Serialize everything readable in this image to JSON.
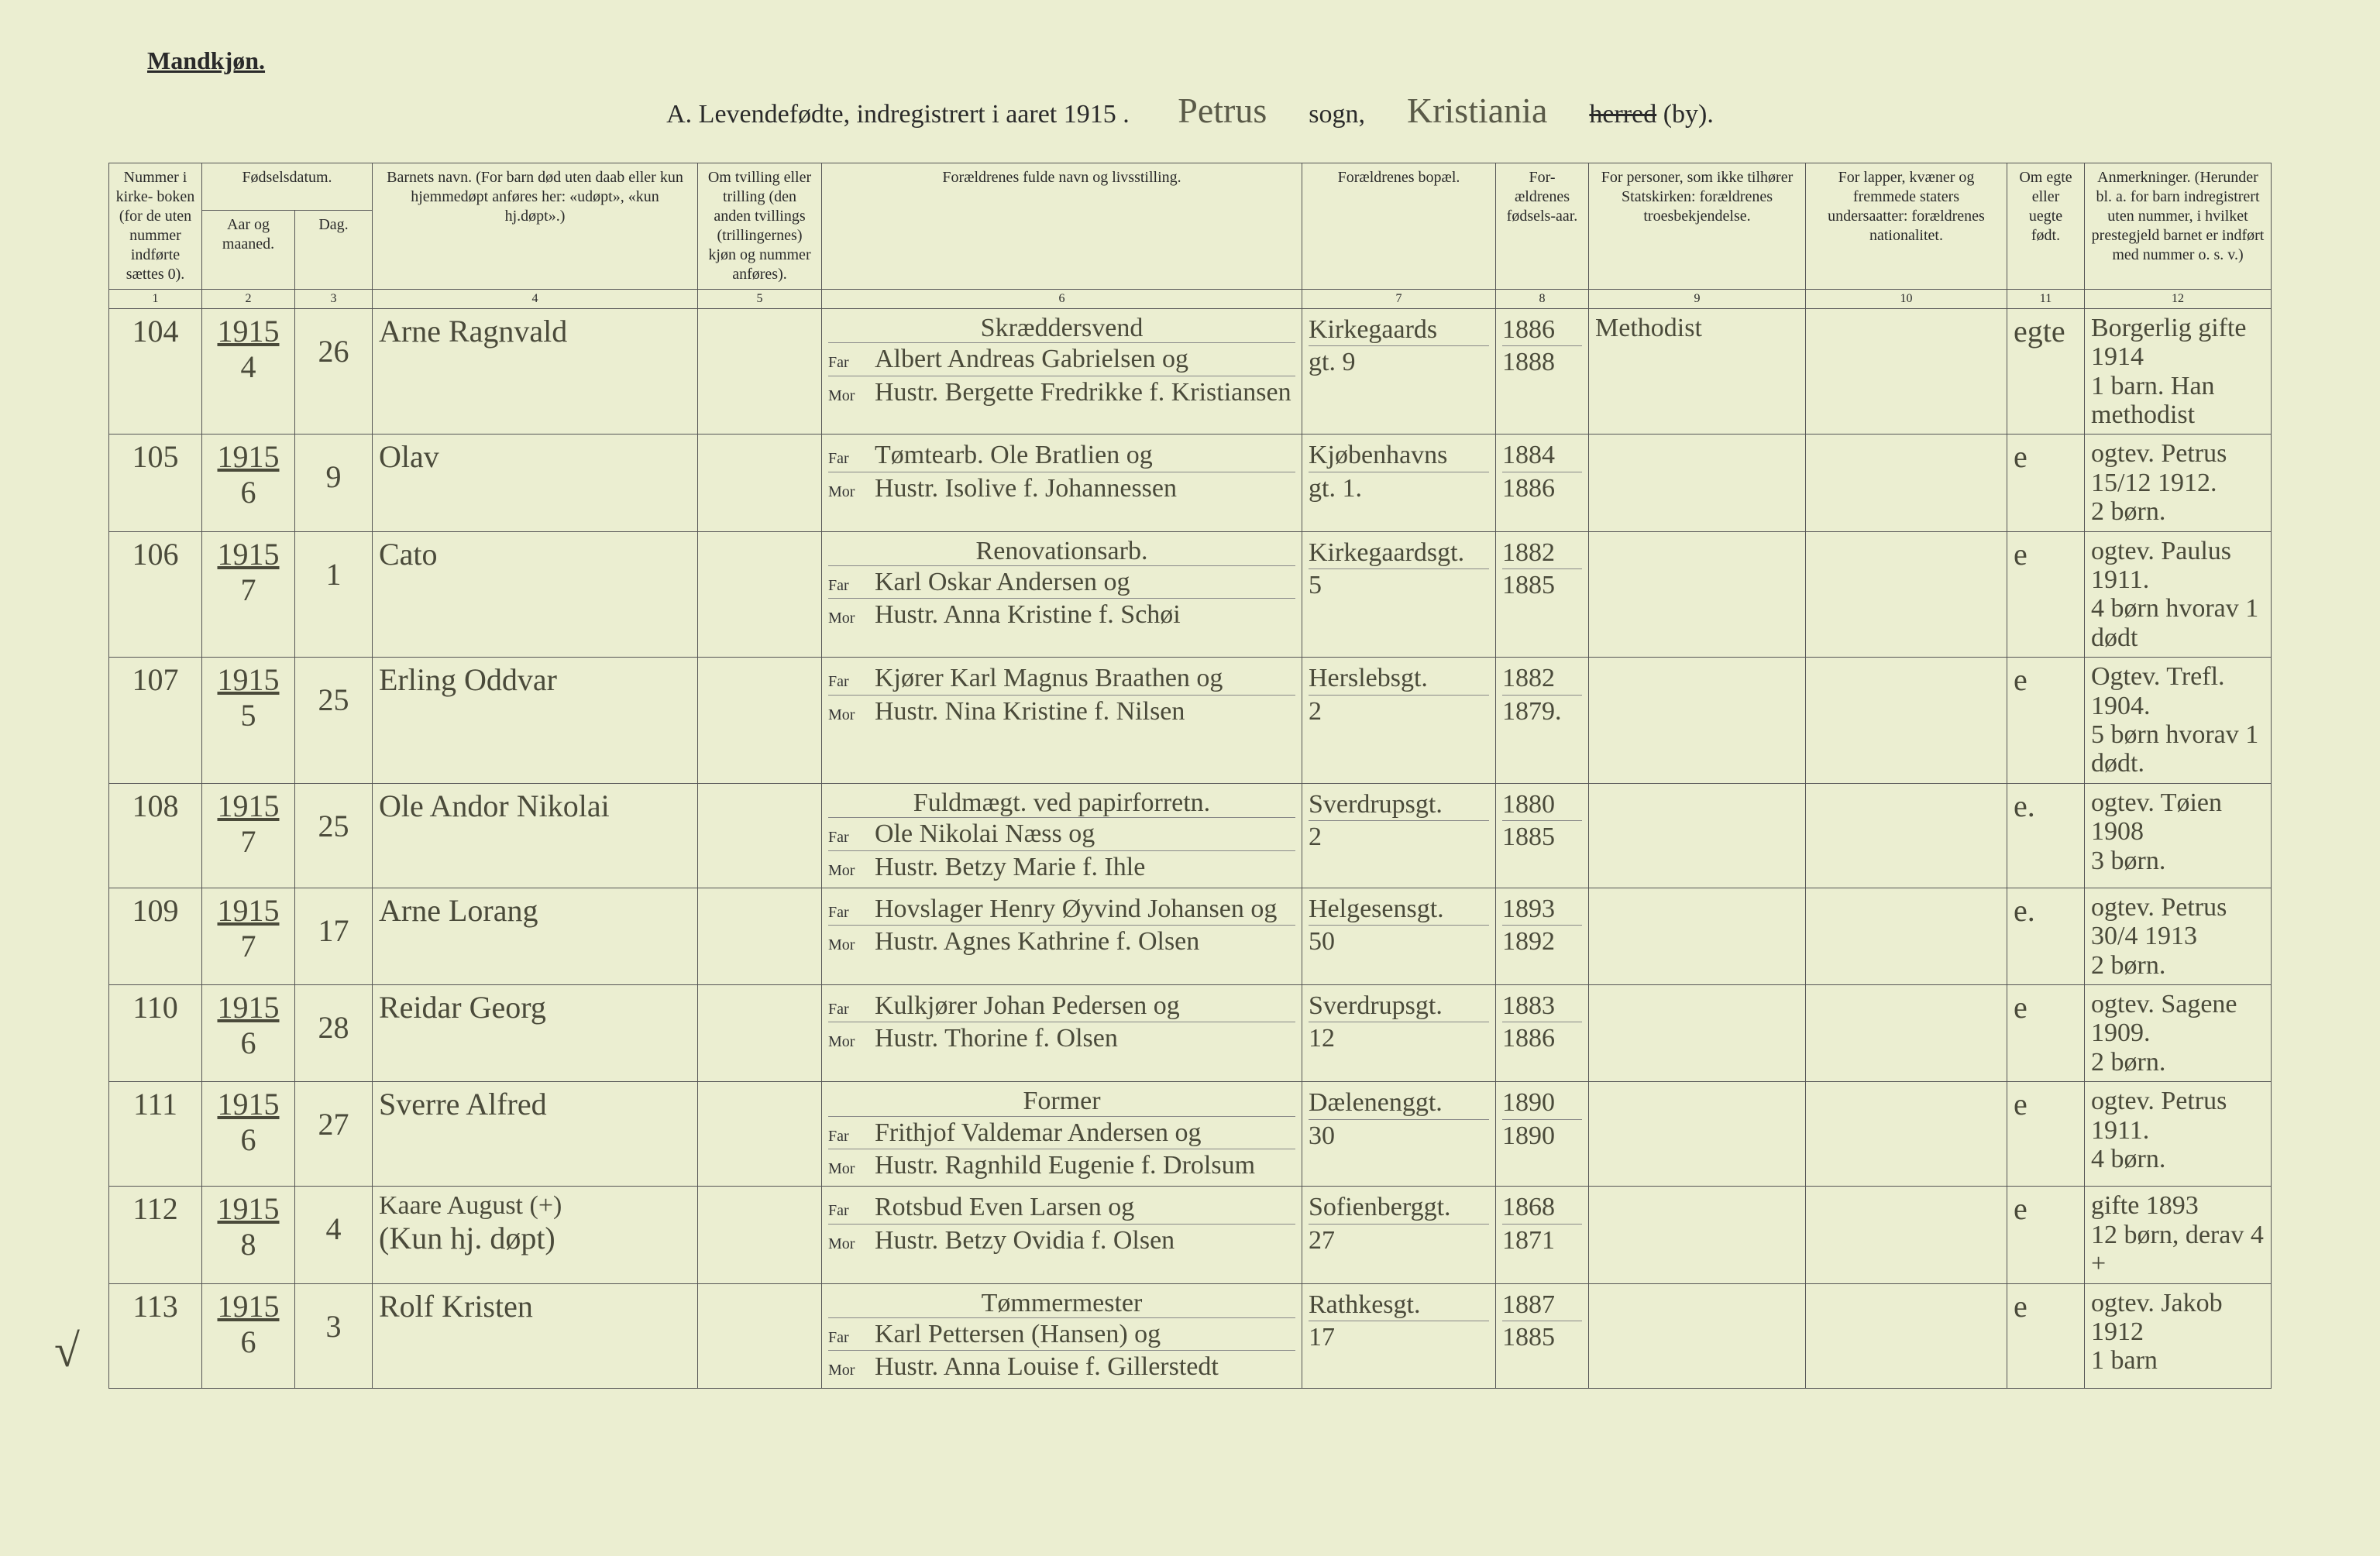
{
  "page": {
    "sex_label": "Mandkjøn.",
    "title_prefix": "A.  Levendefødte, indregistrert i aaret 191",
    "title_year_digit": "5",
    "title_dot": " .",
    "parish_label_before": "",
    "parish_handwritten": "Petrus",
    "sogn_label": "sogn,",
    "district_handwritten": "Kristiania",
    "herred_struck": "herred",
    "by_label": "(by)."
  },
  "headers": {
    "col1": "Nummer i kirke-\nboken (for de uten nummer indførte sættes 0).",
    "col23_top": "Fødselsdatum.",
    "col2": "Aar og maaned.",
    "col3": "Dag.",
    "col4": "Barnets navn.\n(For barn død uten daab eller kun hjemmedøpt anføres her: «udøpt», «kun hj.døpt».)",
    "col5": "Om tvilling eller trilling (den anden tvillings (trillingernes) kjøn og nummer anføres).",
    "col6": "Forældrenes fulde navn og livsstilling.",
    "col7": "Forældrenes bopæl.",
    "col8": "For-ældrenes fødsels-aar.",
    "col9": "For personer, som ikke tilhører Statskirken: forældrenes troesbekjendelse.",
    "col10": "For lapper, kvæner og fremmede staters undersaatter: forældrenes nationalitet.",
    "col11": "Om egte eller uegte født.",
    "col12": "Anmerkninger.\n(Herunder bl. a. for barn indregistrert uten nummer, i hvilket prestegjeld barnet er indført med nummer o. s. v.)",
    "far_label": "Far",
    "mor_label": "Mor",
    "colnums": [
      "1",
      "2",
      "3",
      "4",
      "5",
      "6",
      "7",
      "8",
      "9",
      "10",
      "11",
      "12"
    ]
  },
  "rows": [
    {
      "num": "104",
      "year": "1915",
      "month": "4",
      "day": "26",
      "child": "Arne Ragnvald",
      "twin": "",
      "far_occ": "Skræddersvend",
      "far": "Albert Andreas Gabrielsen og",
      "mor": "Hustr. Bergette Fredrikke f. Kristiansen",
      "addr_far": "Kirkegaards",
      "addr_mor": "gt. 9",
      "pyear_far": "1886",
      "pyear_mor": "1888",
      "church": "Methodist",
      "nat": "",
      "legit": "egte",
      "notes_top": "Borgerlig gifte 1914",
      "notes_bot": "1 barn.  Han methodist"
    },
    {
      "num": "105",
      "year": "1915",
      "month": "6",
      "day": "9",
      "child": "Olav",
      "twin": "",
      "far_occ": "",
      "far": "Tømtearb. Ole Bratlien  og",
      "mor": "Hustr. Isolive f. Johannessen",
      "addr_far": "Kjøbenhavns",
      "addr_mor": "gt. 1.",
      "pyear_far": "1884",
      "pyear_mor": "1886",
      "church": "",
      "nat": "",
      "legit": "e",
      "notes_top": "ogtev. Petrus 15/12 1912.",
      "notes_bot": "2 børn."
    },
    {
      "num": "106",
      "year": "1915",
      "month": "7",
      "day": "1",
      "child": "Cato",
      "twin": "",
      "far_occ": "Renovationsarb.",
      "far": "Karl Oskar Andersen  og",
      "mor": "Hustr. Anna Kristine f. Schøi",
      "addr_far": "Kirkegaardsgt.",
      "addr_mor": "5",
      "pyear_far": "1882",
      "pyear_mor": "1885",
      "church": "",
      "nat": "",
      "legit": "e",
      "notes_top": "ogtev. Paulus 1911.",
      "notes_bot": "4 børn hvorav 1 dødt"
    },
    {
      "num": "107",
      "year": "1915",
      "month": "5",
      "day": "25",
      "child": "Erling Oddvar",
      "twin": "",
      "far_occ": "",
      "far": "Kjører Karl Magnus Braathen og",
      "mor": "Hustr. Nina Kristine f. Nilsen",
      "addr_far": "Herslebsgt.",
      "addr_mor": "2",
      "pyear_far": "1882",
      "pyear_mor": "1879.",
      "church": "",
      "nat": "",
      "legit": "e",
      "notes_top": "Ogtev. Trefl. 1904.",
      "notes_bot": "5 børn hvorav 1 dødt."
    },
    {
      "num": "108",
      "year": "1915",
      "month": "7",
      "day": "25",
      "child": "Ole Andor Nikolai",
      "twin": "",
      "far_occ": "Fuldmægt. ved papirforretn.",
      "far": "Ole Nikolai Næss   og",
      "mor": "Hustr. Betzy Marie f. Ihle",
      "addr_far": "Sverdrupsgt.",
      "addr_mor": "2",
      "pyear_far": "1880",
      "pyear_mor": "1885",
      "church": "",
      "nat": "",
      "legit": "e.",
      "notes_top": "ogtev. Tøien 1908",
      "notes_bot": "3 børn."
    },
    {
      "num": "109",
      "year": "1915",
      "month": "7",
      "day": "17",
      "child": "Arne Lorang",
      "twin": "",
      "far_occ": "",
      "far": "Hovslager Henry Øyvind Johansen og",
      "mor": "Hustr. Agnes Kathrine f. Olsen",
      "addr_far": "Helgesensgt.",
      "addr_mor": "50",
      "pyear_far": "1893",
      "pyear_mor": "1892",
      "church": "",
      "nat": "",
      "legit": "e.",
      "notes_top": "ogtev. Petrus 30/4 1913",
      "notes_bot": "2 børn."
    },
    {
      "num": "110",
      "year": "1915",
      "month": "6",
      "day": "28",
      "child": "Reidar Georg",
      "twin": "",
      "far_occ": "",
      "far": "Kulkjører Johan Pedersen og",
      "mor": "Hustr. Thorine f. Olsen",
      "addr_far": "Sverdrupsgt.",
      "addr_mor": "12",
      "pyear_far": "1883",
      "pyear_mor": "1886",
      "church": "",
      "nat": "",
      "legit": "e",
      "notes_top": "ogtev. Sagene 1909.",
      "notes_bot": "2 børn."
    },
    {
      "num": "111",
      "year": "1915",
      "month": "6",
      "day": "27",
      "child": "Sverre Alfred",
      "twin": "",
      "far_occ": "Former",
      "far": "Frithjof Valdemar Andersen og",
      "mor": "Hustr. Ragnhild Eugenie f. Drolsum",
      "addr_far": "Dælenenggt.",
      "addr_mor": "30",
      "pyear_far": "1890",
      "pyear_mor": "1890",
      "church": "",
      "nat": "",
      "legit": "e",
      "notes_top": "ogtev. Petrus 1911.",
      "notes_bot": "4 børn."
    },
    {
      "num": "112",
      "year": "1915",
      "month": "8",
      "day": "4",
      "child_top": "Kaare August (+)",
      "child": "(Kun hj. døpt)",
      "twin": "",
      "far_occ": "",
      "far": "Rotsbud Even Larsen  og",
      "mor": "Hustr. Betzy Ovidia f. Olsen",
      "addr_far": "Sofienberggt.",
      "addr_mor": "27",
      "pyear_far": "1868",
      "pyear_mor": "1871",
      "church": "",
      "nat": "",
      "legit": "e",
      "notes_top": "gifte 1893",
      "notes_bot": "12 børn, derav 4 +",
      "check": true
    },
    {
      "num": "113",
      "year": "1915",
      "month": "6",
      "day": "3",
      "child": "Rolf Kristen",
      "twin": "",
      "far_occ": "Tømmermester",
      "far": "Karl Pettersen (Hansen)  og",
      "mor": "Hustr. Anna Louise f. Gillerstedt",
      "addr_far": "Rathkesgt.",
      "addr_mor": "17",
      "pyear_far": "1887",
      "pyear_mor": "1885",
      "church": "",
      "nat": "",
      "legit": "e",
      "notes_top": "ogtev. Jakob 1912",
      "notes_bot": "1 barn"
    }
  ]
}
